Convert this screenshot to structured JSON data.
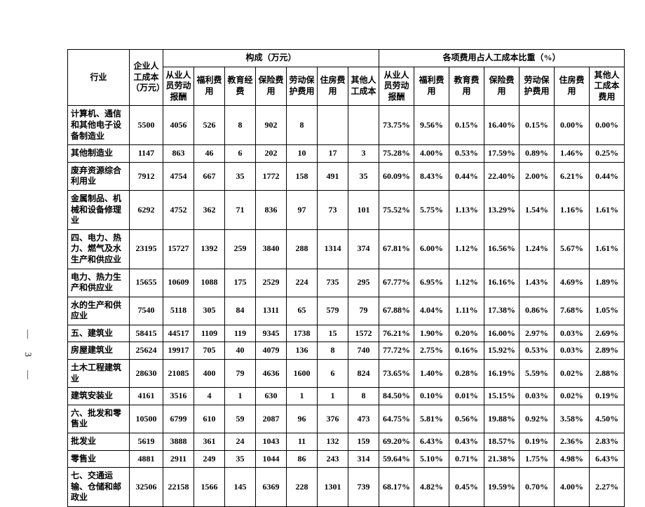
{
  "headers": {
    "industry": "行业",
    "total_cost": "企业人工成本（万元）",
    "composition_group": "构成（万元）",
    "proportion_group": "各项费用占人工成本比重（%）",
    "comp": {
      "labor_pay": "从业人员劳动报酬",
      "welfare": "福利费用",
      "education": "教育经费",
      "insurance": "保险费用",
      "labor_protect": "劳动保护费用",
      "housing": "住房费用",
      "other": "其他人工成本"
    },
    "pct": {
      "labor_pay": "从业人员劳动报酬",
      "welfare": "福利费用",
      "education": "教育费用",
      "insurance": "保险费用",
      "labor_protect": "劳动保护费用",
      "housing": "住房费用",
      "other": "其他人工成本费用"
    }
  },
  "rows": [
    {
      "name": "计算机、通信和其他电子设备制造业",
      "total": "5500",
      "c": [
        "4056",
        "526",
        "8",
        "902",
        "8",
        "",
        ""
      ],
      "p": [
        "73.75%",
        "9.56%",
        "0.15%",
        "16.40%",
        "0.15%",
        "0.00%",
        "0.00%"
      ]
    },
    {
      "name": "其他制造业",
      "total": "1147",
      "c": [
        "863",
        "46",
        "6",
        "202",
        "10",
        "17",
        "3"
      ],
      "p": [
        "75.28%",
        "4.00%",
        "0.53%",
        "17.59%",
        "0.89%",
        "1.46%",
        "0.25%"
      ]
    },
    {
      "name": "废弃资源综合利用业",
      "total": "7912",
      "c": [
        "4754",
        "667",
        "35",
        "1772",
        "158",
        "491",
        "35"
      ],
      "p": [
        "60.09%",
        "8.43%",
        "0.44%",
        "22.40%",
        "2.00%",
        "6.21%",
        "0.44%"
      ]
    },
    {
      "name": "金属制品、机械和设备修理业",
      "total": "6292",
      "c": [
        "4752",
        "362",
        "71",
        "836",
        "97",
        "73",
        "101"
      ],
      "p": [
        "75.52%",
        "5.75%",
        "1.13%",
        "13.29%",
        "1.54%",
        "1.16%",
        "1.61%"
      ]
    },
    {
      "name": "四、电力、热力、燃气及水生产和供应业",
      "total": "23195",
      "c": [
        "15727",
        "1392",
        "259",
        "3840",
        "288",
        "1314",
        "374"
      ],
      "p": [
        "67.81%",
        "6.00%",
        "1.12%",
        "16.56%",
        "1.24%",
        "5.67%",
        "1.61%"
      ]
    },
    {
      "name": "电力、热力生产和供应业",
      "total": "15655",
      "c": [
        "10609",
        "1088",
        "175",
        "2529",
        "224",
        "735",
        "295"
      ],
      "p": [
        "67.77%",
        "6.95%",
        "1.12%",
        "16.16%",
        "1.43%",
        "4.69%",
        "1.89%"
      ]
    },
    {
      "name": "水的生产和供应业",
      "total": "7540",
      "c": [
        "5118",
        "305",
        "84",
        "1311",
        "65",
        "579",
        "79"
      ],
      "p": [
        "67.88%",
        "4.04%",
        "1.11%",
        "17.38%",
        "0.86%",
        "7.68%",
        "1.05%"
      ]
    },
    {
      "name": "五、建筑业",
      "total": "58415",
      "c": [
        "44517",
        "1109",
        "119",
        "9345",
        "1738",
        "15",
        "1572"
      ],
      "p": [
        "76.21%",
        "1.90%",
        "0.20%",
        "16.00%",
        "2.97%",
        "0.03%",
        "2.69%"
      ]
    },
    {
      "name": "房屋建筑业",
      "total": "25624",
      "c": [
        "19917",
        "705",
        "40",
        "4079",
        "136",
        "8",
        "740"
      ],
      "p": [
        "77.72%",
        "2.75%",
        "0.16%",
        "15.92%",
        "0.53%",
        "0.03%",
        "2.89%"
      ]
    },
    {
      "name": "土木工程建筑业",
      "total": "28630",
      "c": [
        "21085",
        "400",
        "79",
        "4636",
        "1600",
        "6",
        "824"
      ],
      "p": [
        "73.65%",
        "1.40%",
        "0.28%",
        "16.19%",
        "5.59%",
        "0.02%",
        "2.88%"
      ]
    },
    {
      "name": "建筑安装业",
      "total": "4161",
      "c": [
        "3516",
        "4",
        "1",
        "630",
        "1",
        "1",
        "8"
      ],
      "p": [
        "84.50%",
        "0.10%",
        "0.01%",
        "15.15%",
        "0.03%",
        "0.02%",
        "0.19%"
      ]
    },
    {
      "name": "六、批发和零售业",
      "total": "10500",
      "c": [
        "6799",
        "610",
        "59",
        "2087",
        "96",
        "376",
        "473"
      ],
      "p": [
        "64.75%",
        "5.81%",
        "0.56%",
        "19.88%",
        "0.92%",
        "3.58%",
        "4.50%"
      ]
    },
    {
      "name": "批发业",
      "total": "5619",
      "c": [
        "3888",
        "361",
        "24",
        "1043",
        "11",
        "132",
        "159"
      ],
      "p": [
        "69.20%",
        "6.43%",
        "0.43%",
        "18.57%",
        "0.19%",
        "2.36%",
        "2.83%"
      ]
    },
    {
      "name": "零售业",
      "total": "4881",
      "c": [
        "2911",
        "249",
        "35",
        "1044",
        "86",
        "243",
        "314"
      ],
      "p": [
        "59.64%",
        "5.10%",
        "0.71%",
        "21.38%",
        "1.75%",
        "4.98%",
        "6.43%"
      ]
    },
    {
      "name": "七、交通运输、仓储和邮政业",
      "total": "32506",
      "c": [
        "22158",
        "1566",
        "145",
        "6369",
        "228",
        "1301",
        "739"
      ],
      "p": [
        "68.17%",
        "4.82%",
        "0.45%",
        "19.59%",
        "0.70%",
        "4.00%",
        "2.27%"
      ]
    }
  ],
  "page_number": "— 3 —",
  "style": {
    "background_color": "#ffffff",
    "border_color": "#000000",
    "text_color": "#000000",
    "font_size_body": 12,
    "font_weight": "bold"
  }
}
